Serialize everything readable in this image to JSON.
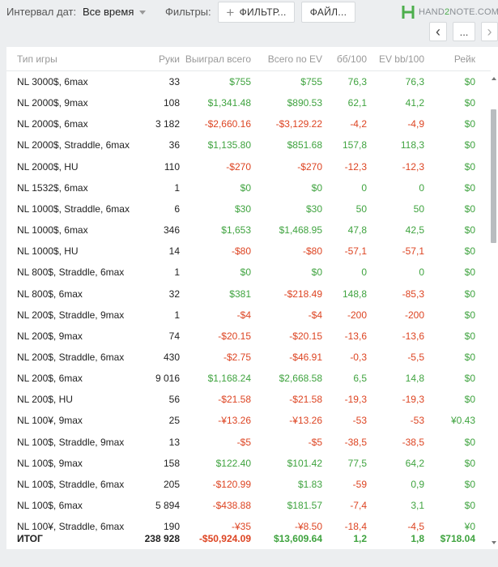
{
  "toolbar": {
    "date_label": "Интервал дат:",
    "date_value": "Все время",
    "filters_label": "Фильтры:",
    "filter_button": "ФИЛЬТР...",
    "file_button": "ФАЙЛ...",
    "logo_left": "HAND",
    "logo_mid": "2",
    "logo_right": "NOTE.COM",
    "prev": "‹",
    "more": "...",
    "next": "›"
  },
  "table": {
    "headers": [
      "Тип игры",
      "Руки",
      "Выиграл всего",
      "Всего по EV",
      "бб/100",
      "EV bb/100",
      "Рейк"
    ],
    "rows": [
      [
        "NL 3000$, 6max",
        "33",
        "$755",
        "$755",
        "76,3",
        "76,3",
        "$0"
      ],
      [
        "NL 2000$, 9max",
        "108",
        "$1,341.48",
        "$890.53",
        "62,1",
        "41,2",
        "$0"
      ],
      [
        "NL 2000$, 6max",
        "3 182",
        "-$2,660.16",
        "-$3,129.22",
        "-4,2",
        "-4,9",
        "$0"
      ],
      [
        "NL 2000$, Straddle, 6max",
        "36",
        "$1,135.80",
        "$851.68",
        "157,8",
        "118,3",
        "$0"
      ],
      [
        "NL 2000$, HU",
        "110",
        "-$270",
        "-$270",
        "-12,3",
        "-12,3",
        "$0"
      ],
      [
        "NL 1532$, 6max",
        "1",
        "$0",
        "$0",
        "0",
        "0",
        "$0"
      ],
      [
        "NL 1000$, Straddle, 6max",
        "6",
        "$30",
        "$30",
        "50",
        "50",
        "$0"
      ],
      [
        "NL 1000$, 6max",
        "346",
        "$1,653",
        "$1,468.95",
        "47,8",
        "42,5",
        "$0"
      ],
      [
        "NL 1000$, HU",
        "14",
        "-$80",
        "-$80",
        "-57,1",
        "-57,1",
        "$0"
      ],
      [
        "NL 800$, Straddle, 6max",
        "1",
        "$0",
        "$0",
        "0",
        "0",
        "$0"
      ],
      [
        "NL 800$, 6max",
        "32",
        "$381",
        "-$218.49",
        "148,8",
        "-85,3",
        "$0"
      ],
      [
        "NL 200$, Straddle, 9max",
        "1",
        "-$4",
        "-$4",
        "-200",
        "-200",
        "$0"
      ],
      [
        "NL 200$, 9max",
        "74",
        "-$20.15",
        "-$20.15",
        "-13,6",
        "-13,6",
        "$0"
      ],
      [
        "NL 200$, Straddle, 6max",
        "430",
        "-$2.75",
        "-$46.91",
        "-0,3",
        "-5,5",
        "$0"
      ],
      [
        "NL 200$, 6max",
        "9 016",
        "$1,168.24",
        "$2,668.58",
        "6,5",
        "14,8",
        "$0"
      ],
      [
        "NL 200$, HU",
        "56",
        "-$21.58",
        "-$21.58",
        "-19,3",
        "-19,3",
        "$0"
      ],
      [
        "NL 100¥, 9max",
        "25",
        "-¥13.26",
        "-¥13.26",
        "-53",
        "-53",
        "¥0.43"
      ],
      [
        "NL 100$, Straddle, 9max",
        "13",
        "-$5",
        "-$5",
        "-38,5",
        "-38,5",
        "$0"
      ],
      [
        "NL 100$, 9max",
        "158",
        "$122.40",
        "$101.42",
        "77,5",
        "64,2",
        "$0"
      ],
      [
        "NL 100$, Straddle, 6max",
        "205",
        "-$120.99",
        "$1.83",
        "-59",
        "0,9",
        "$0"
      ],
      [
        "NL 100$, 6max",
        "5 894",
        "-$438.88",
        "$181.57",
        "-7,4",
        "3,1",
        "$0"
      ],
      [
        "NL 100¥, Straddle, 6max",
        "190",
        "-¥35",
        "-¥8.50",
        "-18,4",
        "-4,5",
        "¥0"
      ]
    ],
    "total": [
      "ИТОГ",
      "238 928",
      "-$50,924.09",
      "$13,609.64",
      "1,2",
      "1,8",
      "$718.04"
    ]
  },
  "colors": {
    "positive": "#3fa33f",
    "negative": "#dd4422",
    "header_text": "#999999"
  }
}
